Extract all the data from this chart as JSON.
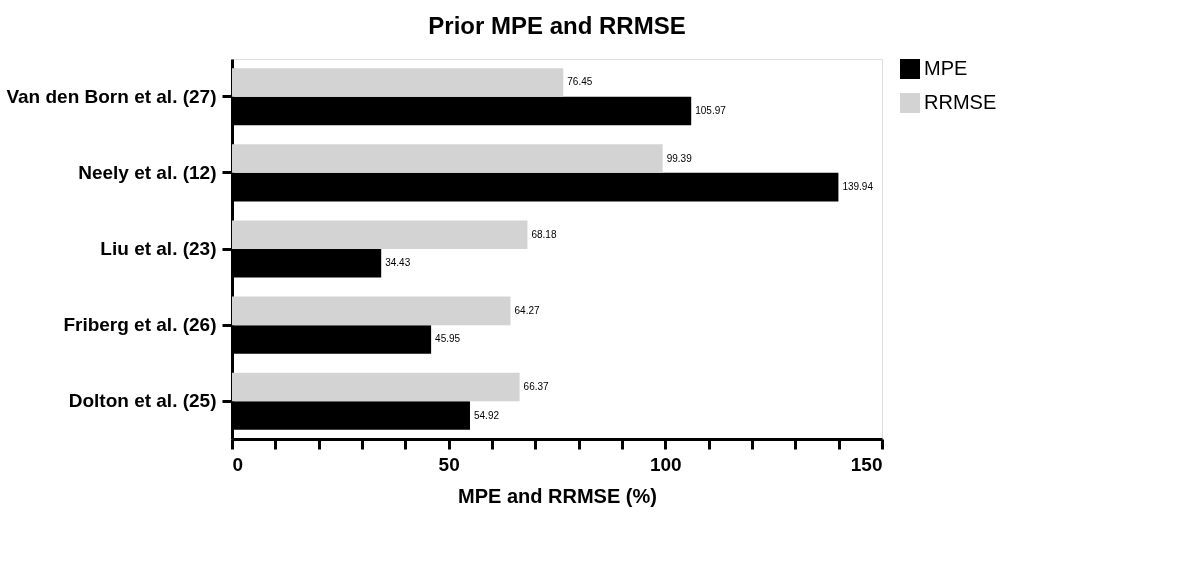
{
  "chart_data": {
    "type": "bar",
    "orientation": "horizontal",
    "title": "Prior MPE and RRMSE",
    "xlabel": "MPE and RRMSE (%)",
    "categories": [
      "Van den Born et al. (27)",
      "Neely et al. (12)",
      "Liu et al. (23)",
      "Friberg et al. (26)",
      "Dolton et al. (25)"
    ],
    "series": [
      {
        "name": "MPE",
        "color": "#000000",
        "values": [
          105.97,
          139.94,
          34.43,
          45.95,
          54.92
        ]
      },
      {
        "name": "RRMSE",
        "color": "#d3d3d3",
        "values": [
          76.45,
          99.39,
          68.18,
          64.27,
          66.37
        ]
      }
    ],
    "xlim": [
      0,
      150
    ],
    "xticks": [
      0,
      {
        "value": 10,
        "label": null
      },
      {
        "value": 20,
        "label": null
      },
      {
        "value": 30,
        "label": null
      },
      {
        "value": 40,
        "label": null
      },
      50,
      {
        "value": 60,
        "label": null
      },
      {
        "value": 70,
        "label": null
      },
      {
        "value": 80,
        "label": null
      },
      {
        "value": 90,
        "label": null
      },
      100,
      {
        "value": 110,
        "label": null
      },
      {
        "value": 120,
        "label": null
      },
      {
        "value": 130,
        "label": null
      },
      {
        "value": 140,
        "label": null
      },
      150
    ],
    "data_labels": true,
    "grid": false,
    "legend": "top right"
  }
}
